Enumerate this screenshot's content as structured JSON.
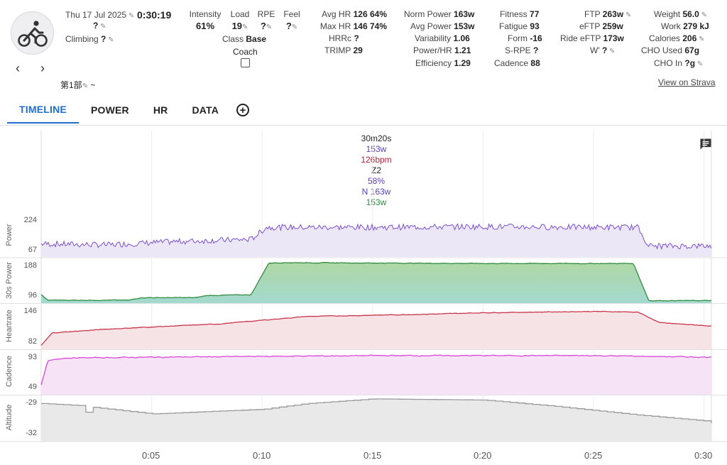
{
  "header": {
    "date": "Thu 17 Jul 2025",
    "duration": "0:30:19",
    "name_placeholder": "?",
    "climbing_label": "Climbing",
    "climbing_value": "?",
    "title": "第1部",
    "title_suffix": "~",
    "view_on_strava": "View on Strava"
  },
  "metrics": {
    "intensity_label": "Intensity",
    "intensity_value": "61%",
    "load_label": "Load",
    "load_value": "19",
    "rpe_label": "RPE",
    "rpe_value": "?",
    "feel_label": "Feel",
    "feel_value": "?",
    "class_label": "Class",
    "class_value": "Base",
    "coach_label": "Coach",
    "avg_hr_label": "Avg HR",
    "avg_hr_value": "126",
    "avg_hr_pct": "64%",
    "max_hr_label": "Max HR",
    "max_hr_value": "146",
    "max_hr_pct": "74%",
    "hrrc_label": "HRRc",
    "hrrc_value": "?",
    "trimp_label": "TRIMP",
    "trimp_value": "29",
    "norm_power_label": "Norm Power",
    "norm_power_value": "163w",
    "avg_power_label": "Avg Power",
    "avg_power_value": "153w",
    "variability_label": "Variability",
    "variability_value": "1.06",
    "power_hr_label": "Power/HR",
    "power_hr_value": "1.21",
    "efficiency_label": "Efficiency",
    "efficiency_value": "1.29",
    "fitness_label": "Fitness",
    "fitness_value": "77",
    "fatigue_label": "Fatigue",
    "fatigue_value": "93",
    "form_label": "Form",
    "form_value": "-16",
    "srpe_label": "S-RPE",
    "srpe_value": "?",
    "cadence_label": "Cadence",
    "cadence_value": "88",
    "ftp_label": "FTP",
    "ftp_value": "263w",
    "eftp_label": "eFTP",
    "eftp_value": "259w",
    "ride_eftp_label": "Ride eFTP",
    "ride_eftp_value": "173w",
    "wprime_label": "W'",
    "wprime_value": "?",
    "weight_label": "Weight",
    "weight_value": "56.0",
    "work_label": "Work",
    "work_value": "279 kJ",
    "calories_label": "Calories",
    "calories_value": "206",
    "cho_used_label": "CHO Used",
    "cho_used_value": "67g",
    "cho_in_label": "CHO In",
    "cho_in_value": "?g"
  },
  "tabs": [
    "TIMELINE",
    "POWER",
    "HR",
    "DATA"
  ],
  "tooltip": {
    "time": "30m20s",
    "power": "153w",
    "hr": "126bpm",
    "zone": "Z2",
    "pct": "58%",
    "np": "N 163w",
    "p30": "153w"
  },
  "chart_labels": {
    "power": "Power",
    "power_max": "224",
    "power_min": "67",
    "p30": "30s Power",
    "p30_max": "188",
    "p30_min": "96",
    "hr": "Heartrate",
    "hr_max": "146",
    "hr_min": "82",
    "cad": "Cadence",
    "cad_max": "93",
    "cad_min": "49",
    "alt": "Altitude",
    "alt_max": "-29",
    "alt_min": "-32"
  },
  "x_ticks": [
    "0:05",
    "0:10",
    "0:15",
    "0:20",
    "0:25",
    "0:30"
  ],
  "colors": {
    "power": "#7b4fcf",
    "p30": "#2e8b40",
    "p30_fill_top": "#a8d8a0",
    "p30_fill_bot": "#9fd6cc",
    "hr": "#c8354a",
    "cad": "#d946d9",
    "alt": "#999999",
    "accent": "#1e6fce"
  },
  "chart_data": {
    "type": "line",
    "x_unit": "minutes",
    "x_range": [
      0,
      30.33
    ],
    "series": [
      {
        "name": "Power",
        "x": [
          0,
          3,
          6,
          9.5,
          10.2,
          15,
          20,
          25,
          27,
          27.5,
          30.3
        ],
        "values": [
          100,
          95,
          110,
          120,
          175,
          175,
          178,
          175,
          175,
          90,
          90
        ]
      },
      {
        "name": "30s Power",
        "x": [
          0,
          0.3,
          4,
          4.5,
          7,
          7.5,
          9.5,
          10.3,
          11,
          20,
          26.8,
          27.5,
          30.3
        ],
        "values": [
          110,
          97,
          97,
          103,
          103,
          108,
          110,
          185,
          186,
          184,
          184,
          96,
          96
        ]
      },
      {
        "name": "Heartrate",
        "x": [
          0,
          0.5,
          3,
          6,
          8,
          10,
          12,
          15,
          18,
          20,
          25,
          27,
          28,
          30.3
        ],
        "values": [
          84,
          104,
          110,
          115,
          118,
          124,
          130,
          132,
          134,
          136,
          138,
          137,
          120,
          115
        ]
      },
      {
        "name": "Cadence",
        "x": [
          0,
          0.3,
          1,
          5,
          10,
          15,
          20,
          25,
          27.5,
          30.3
        ],
        "values": [
          52,
          82,
          86,
          87,
          88,
          89,
          89,
          89,
          88,
          87
        ]
      },
      {
        "name": "Altitude",
        "x": [
          0,
          2,
          2.1,
          2.2,
          5,
          10,
          12,
          15,
          20,
          23,
          27,
          30,
          30.3
        ],
        "values": [
          -29.3,
          -29.5,
          -32,
          -29.6,
          -30.2,
          -29.8,
          -29.3,
          -28.9,
          -29.0,
          -29.5,
          -30.3,
          -30.8,
          -31.0
        ]
      }
    ]
  }
}
